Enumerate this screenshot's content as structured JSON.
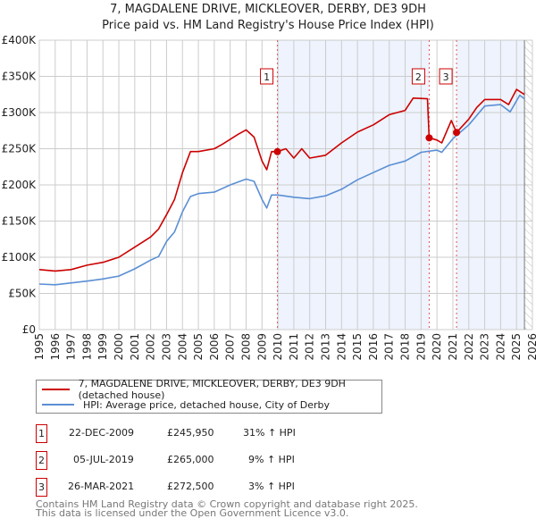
{
  "header": {
    "title": "7, MAGDALENE DRIVE, MICKLEOVER, DERBY, DE3 9DH",
    "subtitle": "Price paid vs. HM Land Registry's House Price Index (HPI)"
  },
  "legend": {
    "items": [
      {
        "label": "7, MAGDALENE DRIVE, MICKLEOVER, DERBY, DE3 9DH (detached house)",
        "color": "#cc0000"
      },
      {
        "label": "HPI: Average price, detached house, City of Derby",
        "color": "#5b8fd4"
      }
    ]
  },
  "sales": [
    {
      "num": "1",
      "date": "22-DEC-2009",
      "price": "£245,950",
      "hpi": "31% ↑ HPI"
    },
    {
      "num": "2",
      "date": "05-JUL-2019",
      "price": "£265,000",
      "hpi": "9% ↑ HPI"
    },
    {
      "num": "3",
      "date": "26-MAR-2021",
      "price": "£272,500",
      "hpi": "3% ↑ HPI"
    }
  ],
  "footer": {
    "line1": "Contains HM Land Registry data © Crown copyright and database right 2025.",
    "line2": "This data is licensed under the Open Government Licence v3.0."
  },
  "chart_data": {
    "type": "line",
    "title": "7, MAGDALENE DRIVE, MICKLEOVER, DERBY, DE3 9DH",
    "xlim": [
      1995,
      2026
    ],
    "ylim": [
      0,
      400000
    ],
    "xticks": [
      "1995",
      "1996",
      "1997",
      "1998",
      "1999",
      "2000",
      "2001",
      "2002",
      "2003",
      "2004",
      "2005",
      "2006",
      "2007",
      "2008",
      "2009",
      "2010",
      "2011",
      "2012",
      "2013",
      "2014",
      "2015",
      "2016",
      "2017",
      "2018",
      "2019",
      "2020",
      "2021",
      "2022",
      "2023",
      "2024",
      "2025",
      "2026"
    ],
    "yticks": [
      {
        "v": 0,
        "label": "£0"
      },
      {
        "v": 50000,
        "label": "£50K"
      },
      {
        "v": 100000,
        "label": "£100K"
      },
      {
        "v": 150000,
        "label": "£150K"
      },
      {
        "v": 200000,
        "label": "£200K"
      },
      {
        "v": 250000,
        "label": "£250K"
      },
      {
        "v": 300000,
        "label": "£300K"
      },
      {
        "v": 350000,
        "label": "£350K"
      },
      {
        "v": 400000,
        "label": "£400K"
      }
    ],
    "grid": true,
    "series": [
      {
        "name": "7, MAGDALENE DRIVE, MICKLEOVER, DERBY, DE3 9DH (detached house)",
        "color": "#cc0000",
        "x": [
          1995,
          1996,
          1997,
          1998,
          1999,
          2000,
          2001,
          2002,
          2002.5,
          2003,
          2003.5,
          2004,
          2004.5,
          2005,
          2006,
          2006.5,
          2007.5,
          2008,
          2008.5,
          2009,
          2009.3,
          2009.6,
          2009.97,
          2010.5,
          2011,
          2011.5,
          2012,
          2013,
          2014,
          2015,
          2016,
          2017,
          2018,
          2018.5,
          2019.4,
          2019.51,
          2020,
          2020.3,
          2020.9,
          2021.23,
          2022,
          2022.5,
          2023,
          2024,
          2024.5,
          2025,
          2025.5
        ],
        "y": [
          83000,
          81000,
          83000,
          89000,
          93000,
          100000,
          114000,
          128000,
          139000,
          159000,
          180000,
          217000,
          246000,
          246000,
          250000,
          256000,
          270000,
          276000,
          266000,
          233000,
          221000,
          246000,
          245950,
          250000,
          237000,
          250000,
          237000,
          241000,
          258000,
          273000,
          283000,
          297000,
          303000,
          320000,
          319000,
          265000,
          262000,
          258000,
          289000,
          272500,
          291000,
          307000,
          318000,
          318000,
          311000,
          332000,
          325000
        ]
      },
      {
        "name": "HPI: Average price, detached house, City of Derby",
        "color": "#5b8fd4",
        "x": [
          1995,
          1996,
          1998,
          1999,
          2000,
          2001,
          2002,
          2002.5,
          2003,
          2003.5,
          2004,
          2004.5,
          2005,
          2006,
          2007,
          2008,
          2008.5,
          2009,
          2009.3,
          2009.6,
          2010,
          2011,
          2012,
          2013,
          2014,
          2015,
          2016,
          2017,
          2018,
          2019,
          2020,
          2020.3,
          2021,
          2022,
          2023,
          2024,
          2024.6,
          2025.2,
          2025.5
        ],
        "y": [
          63000,
          62000,
          67000,
          70000,
          74000,
          84000,
          96000,
          101000,
          122000,
          135000,
          163000,
          184000,
          188000,
          190000,
          200000,
          208000,
          205000,
          180000,
          168000,
          186000,
          186000,
          183000,
          181000,
          185000,
          194000,
          207000,
          217000,
          227000,
          233000,
          245000,
          248000,
          245000,
          264000,
          283000,
          309000,
          311000,
          301000,
          324000,
          319000
        ]
      }
    ],
    "annotations": [
      {
        "label": "1",
        "x": 2009.97,
        "y": 245950
      },
      {
        "label": "2",
        "x": 2019.51,
        "y": 265000
      },
      {
        "label": "3",
        "x": 2021.23,
        "y": 272500
      }
    ],
    "shaded_ranges": [
      [
        2009.97,
        2019.51
      ],
      [
        2021.23,
        2025.5
      ]
    ],
    "hatched_from": 2025.5,
    "legend_position": "bottom"
  }
}
